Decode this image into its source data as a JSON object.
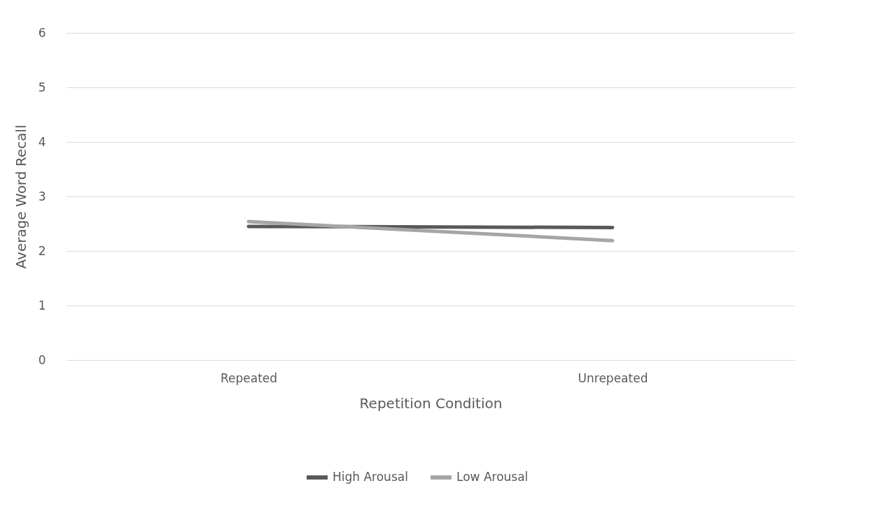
{
  "chart_data": {
    "type": "line",
    "xlabel": "Repetition Condition",
    "ylabel": "Average Word Recall",
    "categories": [
      "Repeated",
      "Unrepeated"
    ],
    "series": [
      {
        "name": "High Arousal",
        "color": "#595959",
        "values": [
          2.45,
          2.43
        ]
      },
      {
        "name": "Low Arousal",
        "color": "#a6a6a6",
        "values": [
          2.54,
          2.19
        ]
      }
    ],
    "ylim": [
      0,
      6
    ],
    "yticks": [
      0,
      1,
      2,
      3,
      4,
      5,
      6
    ],
    "grid": "y",
    "legend": "bottom",
    "marker": "none",
    "line_style": "solid"
  }
}
